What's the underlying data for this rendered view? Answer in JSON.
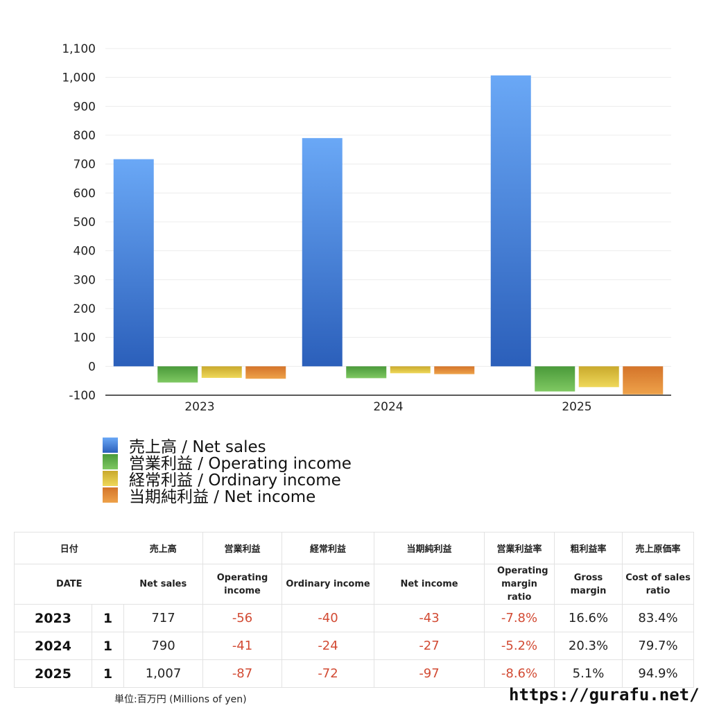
{
  "chart_data": {
    "type": "bar",
    "categories": [
      "2023",
      "2024",
      "2025"
    ],
    "series": [
      {
        "name": "売上高 / Net sales",
        "values": [
          717,
          790,
          1007
        ],
        "color_top": "#6aa8f6",
        "color_bottom": "#2b5fba"
      },
      {
        "name": "営業利益 / Operating income",
        "values": [
          -56,
          -41,
          -87
        ],
        "color_top": "#4a9a3a",
        "color_bottom": "#7fc862"
      },
      {
        "name": "経常利益 / Ordinary income",
        "values": [
          -40,
          -24,
          -72
        ],
        "color_top": "#c9a92c",
        "color_bottom": "#efd85a"
      },
      {
        "name": "当期純利益 / Net income",
        "values": [
          -43,
          -27,
          -97
        ],
        "color_top": "#d4742a",
        "color_bottom": "#eea24a"
      }
    ],
    "yticks": [
      "1,100",
      "1,000",
      "900",
      "800",
      "700",
      "600",
      "500",
      "400",
      "300",
      "200",
      "100",
      "0",
      "-100"
    ],
    "ylim": [
      -100,
      1100
    ],
    "grid": true,
    "legend": "bottom-left"
  },
  "table": {
    "header_jp": [
      "日付",
      "売上高",
      "営業利益",
      "経常利益",
      "当期純利益",
      "営業利益率",
      "粗利益率",
      "売上原価率"
    ],
    "header_en": [
      "DATE",
      "Net sales",
      "Operating income",
      "Ordinary income",
      "Net income",
      "Operating margin ratio",
      "Gross margin",
      "Cost of sales ratio"
    ],
    "rows": [
      {
        "year": "2023",
        "q": "1",
        "cells": [
          "717",
          "-56",
          "-40",
          "-43",
          "-7.8%",
          "16.6%",
          "83.4%"
        ]
      },
      {
        "year": "2024",
        "q": "1",
        "cells": [
          "790",
          "-41",
          "-24",
          "-27",
          "-5.2%",
          "20.3%",
          "79.7%"
        ]
      },
      {
        "year": "2025",
        "q": "1",
        "cells": [
          "1,007",
          "-87",
          "-72",
          "-97",
          "-8.6%",
          "5.1%",
          "94.9%"
        ]
      }
    ]
  },
  "footer": {
    "unit_note": "単位:百万円 (Millions of yen)",
    "site_url": "https://gurafu.net/"
  }
}
